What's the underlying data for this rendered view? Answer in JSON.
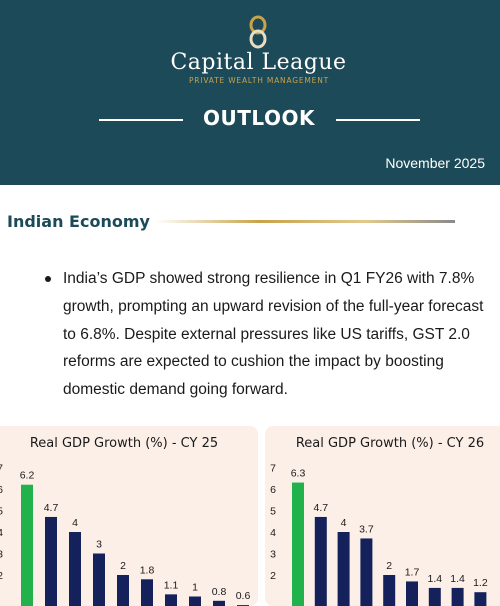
{
  "header": {
    "brand": "Capital League",
    "tagline": "PRIVATE WEALTH MANAGEMENT",
    "title": "OUTLOOK",
    "date": "November 2025",
    "background": "#1c4a58",
    "accent": "#c9a24a",
    "logo_icon": "gold-ring-logo-icon"
  },
  "section": {
    "title": "Indian Economy",
    "bullet": "India’s GDP showed strong resilience in Q1 FY26 with 7.8% growth, prompting an upward revision of the full-year forecast to 6.8%. Despite external pressures like US tariffs, GST 2.0 reforms are expected to cushion the impact by boosting domestic demand going forward."
  },
  "chart_data": [
    {
      "type": "bar",
      "title": "Real GDP Growth (%) - CY 25",
      "values": [
        6.2,
        4.7,
        4,
        3,
        2,
        1.8,
        1.1,
        1,
        0.8,
        0.6
      ],
      "highlight_index": 0,
      "ylim": [
        0,
        7
      ],
      "yticks": [
        2,
        3,
        4,
        5,
        6,
        7
      ],
      "colors": {
        "highlight": "#22b24c",
        "bar": "#14215a"
      }
    },
    {
      "type": "bar",
      "title": "Real GDP Growth (%) - CY 26",
      "values": [
        6.3,
        4.7,
        4,
        3.7,
        2,
        1.7,
        1.4,
        1.4,
        1.2
      ],
      "highlight_index": 0,
      "ylim": [
        0,
        7
      ],
      "yticks": [
        2,
        3,
        4,
        5,
        6,
        7
      ],
      "colors": {
        "highlight": "#22b24c",
        "bar": "#14215a"
      }
    }
  ]
}
